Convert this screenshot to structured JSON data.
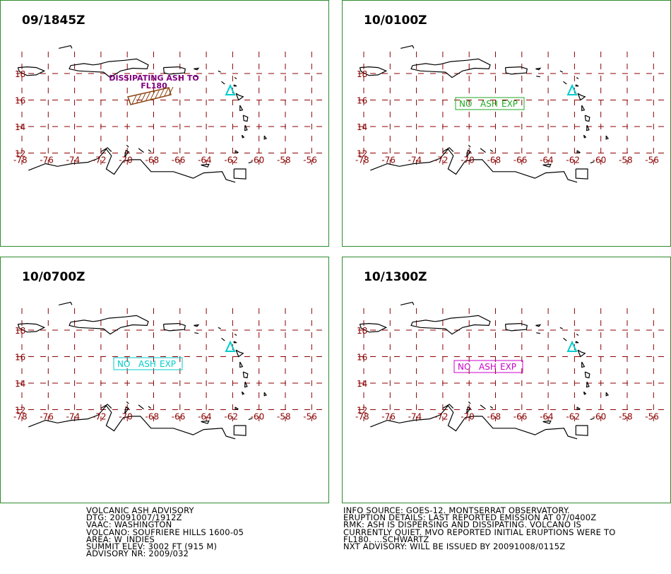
{
  "colors": {
    "border": "#2e8b2e",
    "grid": "#8b0000",
    "coast": "#000000",
    "volcano": "#00cccc",
    "ash_label": "#800080",
    "ash_polygon": "#8b4513"
  },
  "panels": [
    {
      "time": "09/1845Z",
      "ash_label_lines": [
        "DISSIPATING ASH TO",
        "FL180"
      ],
      "box_label": null
    },
    {
      "time": "10/0100Z",
      "ash_label_lines": null,
      "box_label": [
        "NO",
        "ASH",
        "EXP"
      ],
      "box_color": "#22aa22"
    },
    {
      "time": "10/0700Z",
      "ash_label_lines": null,
      "box_label": [
        "NO",
        "ASH",
        "EXP"
      ],
      "box_color": "#00cccc"
    },
    {
      "time": "10/1300Z",
      "ash_label_lines": null,
      "box_label": [
        "NO",
        "ASH",
        "EXP"
      ],
      "box_color": "#cc00cc"
    }
  ],
  "map": {
    "lat_ticks": [
      "18",
      "16",
      "14",
      "12"
    ],
    "lon_ticks": [
      "-78",
      "-76",
      "-74",
      "-72",
      "-70",
      "-68",
      "-66",
      "-64",
      "-62",
      "-60",
      "-58",
      "-56"
    ]
  },
  "advisory_left": [
    "VOLCANIC ASH ADVISORY",
    "DTG: 20091007/1912Z",
    "VAAC: WASHINGTON",
    "VOLCANO: SOUFRIERE HILLS 1600-05",
    "AREA: W_INDIES",
    "SUMMIT ELEV: 3002 FT (915 M)",
    "ADVISORY NR: 2009/032"
  ],
  "advisory_right": [
    "INFO SOURCE: GOES-12. MONTSERRAT OBSERVATORY.",
    "ERUPTION DETAILS: LAST REPORTED EMISSION AT 07/0400Z",
    "RMK: ASH IS DISPERSING AND DISSIPATING. VOLCANO IS",
    "CURRENTLY QUIET. MVO REPORTED INITIAL ERUPTIONS WERE TO",
    "FL180. ...SCHWARTZ",
    "NXT ADVISORY: WILL BE ISSUED BY 20091008/0115Z"
  ]
}
